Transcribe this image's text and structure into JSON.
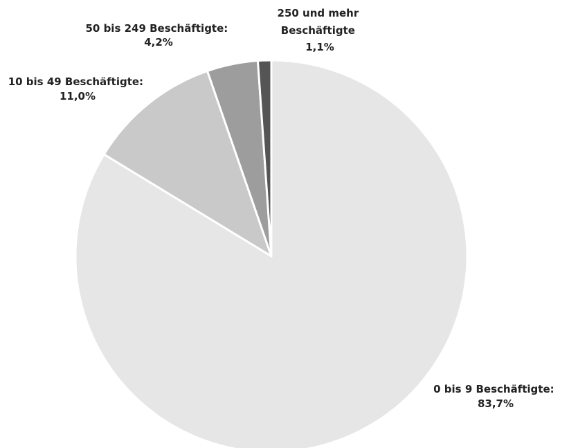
{
  "chart_data": {
    "type": "pie",
    "title": "",
    "start_angle": "12 o'clock, clockwise",
    "slices": [
      {
        "name": "0 bis 9 Beschäftigte:",
        "value": 83.7,
        "value_label": "83,7%",
        "color": "#e6e6e6"
      },
      {
        "name": "10 bis 49 Beschäftigte:",
        "value": 11.0,
        "value_label": "11,0%",
        "color": "#c9c9c9"
      },
      {
        "name": "50 bis 249 Beschäftigte:",
        "value": 4.2,
        "value_label": "4,2%",
        "color": "#9d9d9d"
      },
      {
        "name_lines": [
          "250 und mehr",
          "Beschäftigte"
        ],
        "value": 1.1,
        "value_label": "1,1%",
        "color": "#555555"
      }
    ],
    "slice_border_color": "#ffffff",
    "label_color": "#222222"
  }
}
